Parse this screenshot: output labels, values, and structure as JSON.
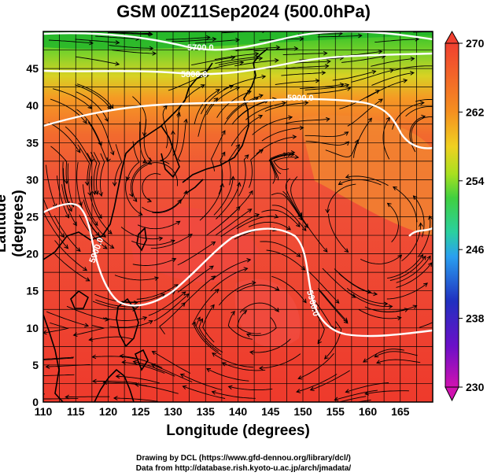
{
  "title": "GSM 00Z11Sep2024 (500.0hPa)",
  "axes": {
    "xlabel": "Longitude (degrees)",
    "ylabel": "Latitude  (degrees)",
    "xticks": [
      "110",
      "115",
      "120",
      "125",
      "130",
      "135",
      "140",
      "145",
      "150",
      "155",
      "160",
      "165"
    ],
    "yticks": [
      "0",
      "5",
      "10",
      "15",
      "20",
      "25",
      "30",
      "35",
      "40",
      "45"
    ],
    "xlim": [
      110,
      170
    ],
    "ylim": [
      0,
      50
    ]
  },
  "colorbar": {
    "ticks": [
      "230",
      "238",
      "246",
      "254",
      "262",
      "270"
    ],
    "range": [
      230,
      270
    ],
    "colors": [
      "#d012b0",
      "#6b0fc8",
      "#2030c0",
      "#2aa0f0",
      "#2ad0a0",
      "#40d040",
      "#a8e020",
      "#f0d020",
      "#f59020",
      "#f04030"
    ]
  },
  "contour_labels": [
    "5700.0",
    "5800.0",
    "5900.0",
    "5900.0",
    "5900.0"
  ],
  "credits": {
    "line1": "Drawing by DCL (https://www.gfd-dennou.org/library/dcl/)",
    "line2": "Data from http://database.rish.kyoto-u.ac.jp/arch/jmadata/"
  }
}
